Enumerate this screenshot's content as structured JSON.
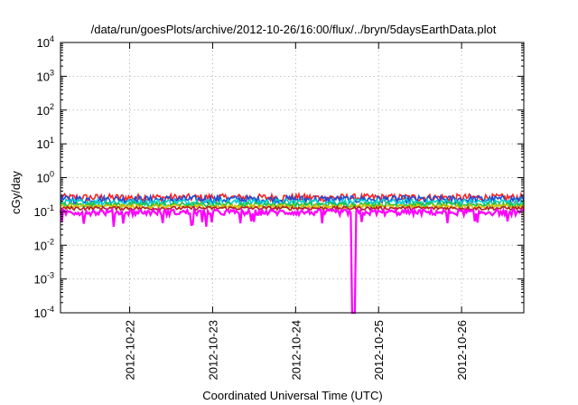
{
  "chart_data": {
    "type": "line",
    "title": "/data/run/goesPlots/archive/2012-10-26/16:00/flux/../bryn/5daysEarthData.plot",
    "xlabel": "Coordinated Universal Time (UTC)",
    "ylabel": "cGy/day",
    "yscale": "log",
    "ylim": [
      0.0001,
      10000
    ],
    "xlim": [
      "2012-10-21T04:00",
      "2012-10-26T18:00"
    ],
    "grid": true,
    "y_ticks": [
      {
        "base": "10",
        "exp": "-4",
        "value": 0.0001
      },
      {
        "base": "10",
        "exp": "-3",
        "value": 0.001
      },
      {
        "base": "10",
        "exp": "-2",
        "value": 0.01
      },
      {
        "base": "10",
        "exp": "-1",
        "value": 0.1
      },
      {
        "base": "10",
        "exp": "0",
        "value": 1
      },
      {
        "base": "10",
        "exp": "1",
        "value": 10
      },
      {
        "base": "10",
        "exp": "2",
        "value": 100
      },
      {
        "base": "10",
        "exp": "3",
        "value": 1000
      },
      {
        "base": "10",
        "exp": "4",
        "value": 10000
      }
    ],
    "x_ticks": [
      "2012-10-22",
      "2012-10-23",
      "2012-10-24",
      "2012-10-25",
      "2012-10-26"
    ],
    "series": [
      {
        "color": "#ff2020",
        "level": 0.26,
        "spread": 0.13
      },
      {
        "color": "#1a4fd8",
        "level": 0.23,
        "spread": 0.13
      },
      {
        "color": "#00d0d0",
        "level": 0.19,
        "spread": 0.11
      },
      {
        "color": "#20c040",
        "level": 0.16,
        "spread": 0.08
      },
      {
        "color": "#d4c000",
        "level": 0.14,
        "spread": 0.07
      },
      {
        "color": "#b02020",
        "level": 0.125,
        "spread": 0.06
      },
      {
        "color": "#ff00ff",
        "level": 0.095,
        "spread": 0.1
      }
    ],
    "dropout": {
      "series_color": "#ff00ff",
      "x": "2012-10-24T16:40",
      "min_value": 0.0001
    }
  }
}
